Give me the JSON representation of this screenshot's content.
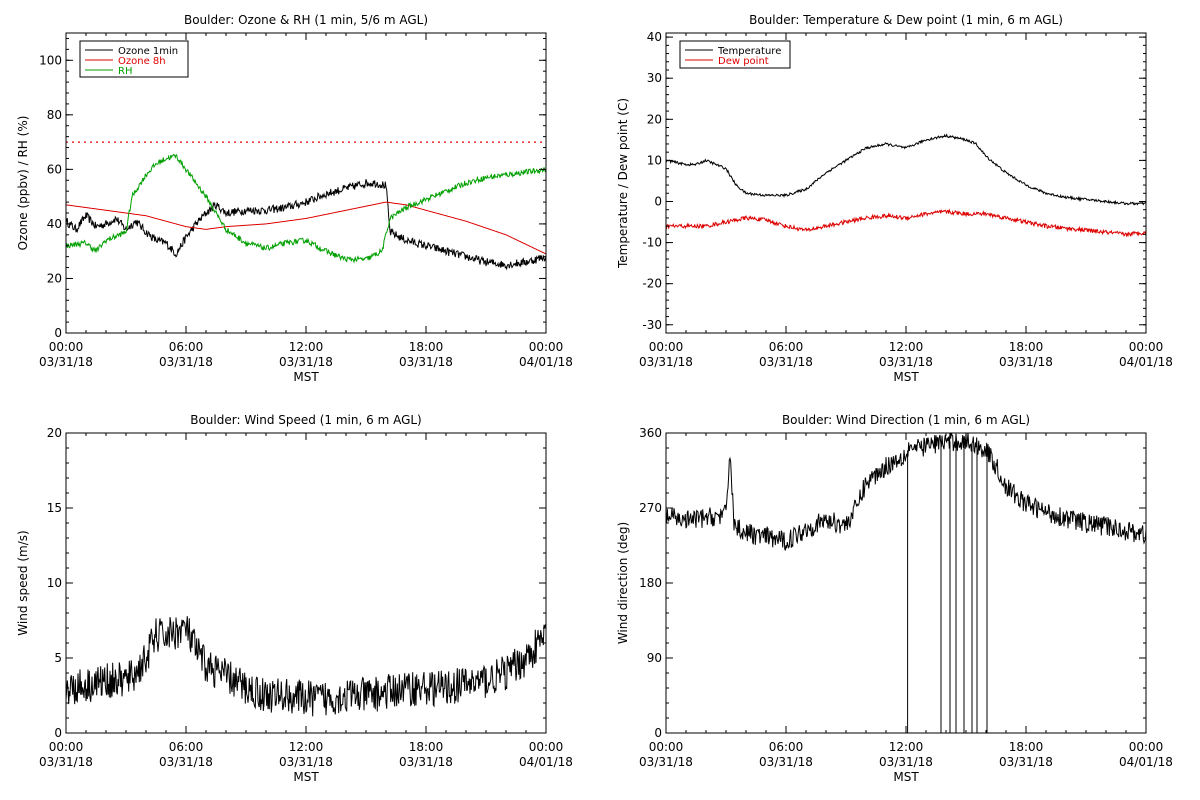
{
  "chart_data": [
    {
      "type": "line",
      "title": "Boulder: Ozone & RH (1 min, 5/6 m AGL)",
      "ylabel": "Ozone (ppbv) / RH (%)",
      "xlabel": "MST",
      "xlim": [
        0,
        24
      ],
      "ylim": [
        0,
        110
      ],
      "yticks": [
        0,
        20,
        40,
        60,
        80,
        100
      ],
      "xticks": [
        {
          "time": "00:00",
          "date": "03/31/18"
        },
        {
          "time": "06:00",
          "date": "03/31/18"
        },
        {
          "time": "12:00",
          "date": "03/31/18"
        },
        {
          "time": "18:00",
          "date": "03/31/18"
        },
        {
          "time": "00:00",
          "date": "04/01/18"
        }
      ],
      "reference_line": {
        "y": 70,
        "color": "#dd0000",
        "style": "dotted"
      },
      "legend": "top-left",
      "series": [
        {
          "name": "Ozone 1min",
          "color": "#000000",
          "noise": 1.5,
          "x": [
            0,
            0.5,
            1,
            1.5,
            2,
            2.5,
            3,
            3.5,
            4,
            4.5,
            5,
            5.5,
            6,
            6.5,
            7,
            7.5,
            8,
            9,
            10,
            11,
            12,
            13,
            14,
            15,
            15.5,
            16,
            16.2,
            17,
            18,
            19,
            20,
            21,
            22,
            23,
            24
          ],
          "y": [
            41,
            38,
            43,
            39,
            40,
            42,
            38,
            41,
            37,
            34,
            33,
            29,
            35,
            40,
            44,
            47,
            44,
            45,
            45,
            46,
            48,
            51,
            53,
            55,
            55,
            54,
            37,
            34,
            32,
            30,
            28,
            26,
            25,
            26,
            28
          ]
        },
        {
          "name": "Ozone 8h",
          "color": "#dd0000",
          "noise": 0,
          "x": [
            0,
            2,
            4,
            5,
            6,
            7,
            8,
            10,
            12,
            14,
            16,
            17,
            18,
            20,
            22,
            24
          ],
          "y": [
            47,
            45,
            43,
            41,
            39,
            38,
            39,
            40,
            42,
            45,
            48,
            47,
            45,
            41,
            36,
            29
          ]
        },
        {
          "name": "RH",
          "color": "#00a000",
          "noise": 1.0,
          "x": [
            0,
            1,
            1.5,
            2,
            3,
            3.3,
            4,
            4.5,
            5,
            5.5,
            6,
            7,
            8,
            9,
            10,
            11,
            12,
            13,
            14,
            15,
            15.8,
            16.2,
            17,
            18,
            19,
            20,
            21,
            22,
            23,
            24
          ],
          "y": [
            32,
            33,
            30,
            34,
            37,
            50,
            58,
            62,
            64,
            65,
            60,
            50,
            38,
            33,
            31,
            33,
            34,
            30,
            27,
            27,
            30,
            42,
            46,
            49,
            52,
            55,
            57,
            58,
            59,
            60
          ]
        }
      ]
    },
    {
      "type": "line",
      "title": "Boulder: Temperature & Dew point (1 min, 6 m AGL)",
      "ylabel": "Temperature / Dew point (C)",
      "xlabel": "MST",
      "xlim": [
        0,
        24
      ],
      "ylim": [
        -32,
        41
      ],
      "yticks": [
        -30,
        -20,
        -10,
        0,
        10,
        20,
        30,
        40
      ],
      "xticks": [
        {
          "time": "00:00",
          "date": "03/31/18"
        },
        {
          "time": "06:00",
          "date": "03/31/18"
        },
        {
          "time": "12:00",
          "date": "03/31/18"
        },
        {
          "time": "18:00",
          "date": "03/31/18"
        },
        {
          "time": "00:00",
          "date": "04/01/18"
        }
      ],
      "legend": "top-left",
      "series": [
        {
          "name": "Temperature",
          "color": "#000000",
          "noise": 0.3,
          "x": [
            0,
            1,
            1.5,
            2,
            3,
            3.5,
            4,
            5,
            6,
            7,
            7.5,
            8,
            9,
            10,
            11,
            12,
            13,
            14,
            15,
            15.5,
            16,
            17,
            18,
            19,
            20,
            21,
            22,
            23,
            24
          ],
          "y": [
            10,
            9,
            9,
            10,
            8,
            4,
            2,
            1.5,
            1.5,
            3,
            5,
            7,
            10,
            13,
            14,
            13,
            15,
            16,
            15,
            14,
            11,
            7,
            4,
            2,
            1,
            0.5,
            0,
            -0.5,
            -0.5
          ]
        },
        {
          "name": "Dew point",
          "color": "#dd0000",
          "noise": 0.5,
          "x": [
            0,
            1,
            2,
            3,
            4,
            5,
            6,
            7,
            8,
            9,
            10,
            11,
            12,
            13,
            14,
            15,
            16,
            17,
            18,
            19,
            20,
            21,
            22,
            23,
            24
          ],
          "y": [
            -6,
            -6,
            -6,
            -5,
            -4,
            -4.5,
            -6,
            -7,
            -6,
            -5,
            -4,
            -3.5,
            -4,
            -3,
            -2.5,
            -3,
            -3,
            -4,
            -5,
            -6,
            -6.5,
            -7,
            -7.5,
            -8,
            -7.5
          ]
        }
      ]
    },
    {
      "type": "line",
      "title": "Boulder: Wind Speed (1 min, 6 m AGL)",
      "ylabel": "Wind speed (m/s)",
      "xlabel": "MST",
      "xlim": [
        0,
        24
      ],
      "ylim": [
        0,
        20
      ],
      "yticks": [
        0,
        5,
        10,
        15,
        20
      ],
      "xticks": [
        {
          "time": "00:00",
          "date": "03/31/18"
        },
        {
          "time": "06:00",
          "date": "03/31/18"
        },
        {
          "time": "12:00",
          "date": "03/31/18"
        },
        {
          "time": "18:00",
          "date": "03/31/18"
        },
        {
          "time": "00:00",
          "date": "04/01/18"
        }
      ],
      "series": [
        {
          "color": "#000000",
          "noise": 1.2,
          "x": [
            0,
            1,
            2,
            3,
            3.5,
            4,
            4.5,
            5,
            6,
            6.5,
            7,
            8,
            9,
            10,
            11,
            12,
            13,
            14,
            15,
            16,
            17,
            18,
            19,
            20,
            21,
            22,
            23,
            24
          ],
          "y": [
            3,
            3.2,
            3.5,
            3.5,
            4,
            5,
            6.5,
            6.5,
            7,
            5.5,
            4.5,
            3.8,
            3,
            2.5,
            2.5,
            2.3,
            2.3,
            2.5,
            2.5,
            2.7,
            3,
            3,
            3,
            3.3,
            3.5,
            4,
            5,
            6.5
          ]
        }
      ]
    },
    {
      "type": "line",
      "title": "Boulder: Wind Direction (1 min, 6 m AGL)",
      "ylabel": "Wind direction (deg)",
      "xlabel": "MST",
      "xlim": [
        0,
        24
      ],
      "ylim": [
        0,
        360
      ],
      "yticks": [
        0,
        90,
        180,
        270,
        360
      ],
      "xticks": [
        {
          "time": "00:00",
          "date": "03/31/18"
        },
        {
          "time": "06:00",
          "date": "03/31/18"
        },
        {
          "time": "12:00",
          "date": "03/31/18"
        },
        {
          "time": "18:00",
          "date": "03/31/18"
        },
        {
          "time": "00:00",
          "date": "04/01/18"
        }
      ],
      "series": [
        {
          "color": "#000000",
          "noise": 12,
          "x": [
            0,
            1,
            2,
            3,
            3.2,
            3.4,
            4,
            5,
            6,
            7,
            8,
            9,
            9.5,
            10,
            11,
            12,
            12.2,
            12.5,
            13,
            14,
            14.5,
            15,
            15.5,
            16,
            16.5,
            17,
            18,
            19,
            20,
            21,
            22,
            23,
            24
          ],
          "y": [
            260,
            255,
            258,
            262,
            340,
            250,
            240,
            235,
            230,
            245,
            255,
            250,
            270,
            300,
            320,
            335,
            345,
            340,
            345,
            350,
            350,
            350,
            345,
            340,
            320,
            295,
            275,
            265,
            258,
            252,
            248,
            243,
            238
          ]
        }
      ],
      "dropouts": [
        {
          "x": 12.08,
          "y": 0
        },
        {
          "x": 13.75,
          "y": 0
        },
        {
          "x": 14.2,
          "y": 0
        },
        {
          "x": 14.5,
          "y": 0
        },
        {
          "x": 14.9,
          "y": 0
        },
        {
          "x": 15.3,
          "y": 0
        },
        {
          "x": 15.55,
          "y": 0
        },
        {
          "x": 16.05,
          "y": 0
        }
      ]
    }
  ]
}
